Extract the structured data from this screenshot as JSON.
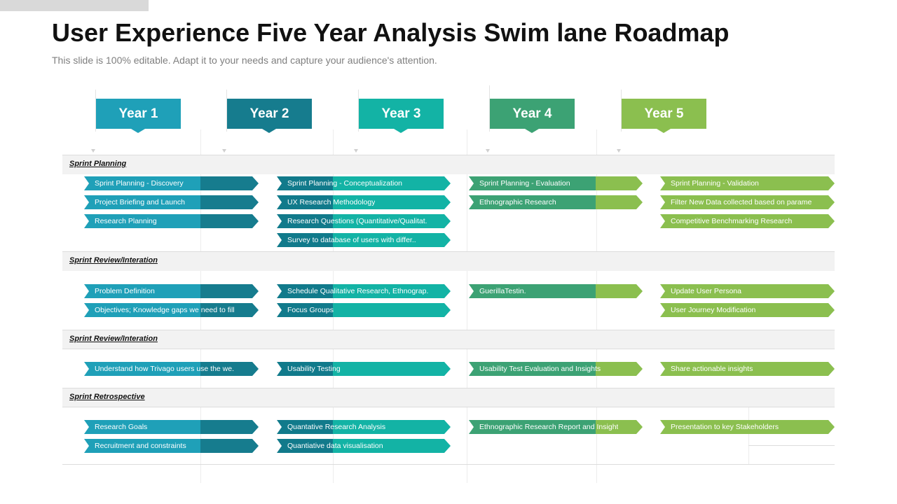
{
  "title": "User Experience Five Year Analysis Swim lane Roadmap",
  "subtitle": "This slide is 100% editable. Adapt it to your needs and capture your audience's attention.",
  "colors": {
    "y1_light": "#1fa0b8",
    "y1_dark": "#167c8e",
    "y2_teal": "#13b3a5",
    "y2_dark": "#117a8b",
    "y4_green": "#3ca274",
    "y5_light": "#8bbf4f",
    "year1": "#1fa0b8",
    "year2": "#167c8e",
    "year3": "#13b3a5",
    "year4": "#3ca274",
    "year5": "#8bbf4f"
  },
  "years": [
    "Year 1",
    "Year 2",
    "Year 3",
    "Year 4",
    "Year 5"
  ],
  "lanes": [
    {
      "name": "Sprint Planning"
    },
    {
      "name": "Sprint Review/Interation"
    },
    {
      "name": "Sprint Review/Interation"
    },
    {
      "name": "Sprint Retrospective"
    }
  ],
  "tasks": {
    "sp": [
      "Sprint Planning  - Discovery",
      "Project Briefing and Launch",
      "Research Planning",
      "Sprint Planning  - Conceptualization",
      "UX Research Methodology",
      "Research Questions (Quantitative/Qualitat.",
      "Survey to database of users with differ..",
      "Sprint Planning  - Evaluation",
      "Ethnographic Research",
      "Sprint Planning  - Validation",
      "Filter New Data collected based on parame",
      "Competitive Benchmarking Research"
    ],
    "ri1": [
      "Problem  Definition",
      "Objectives; Knowledge gaps we need to fill",
      "Schedule Qualitative Research, Ethnograp.",
      "Focus Groups",
      "GuerillaTestin.",
      "Update User Persona",
      "User Journey Modification"
    ],
    "ri2": [
      "Understand how Trivago users use the we.",
      "Usability Testing",
      "Usability Test Evaluation and  Insights",
      "Share actionable insights"
    ],
    "sr": [
      "Research Goals",
      "Recruitment and constraints",
      "Quantative Research Analysis",
      "Quantiative data visualisation",
      "Ethnographic Research Report and Insight",
      "Presentation to key Stakeholders"
    ]
  }
}
